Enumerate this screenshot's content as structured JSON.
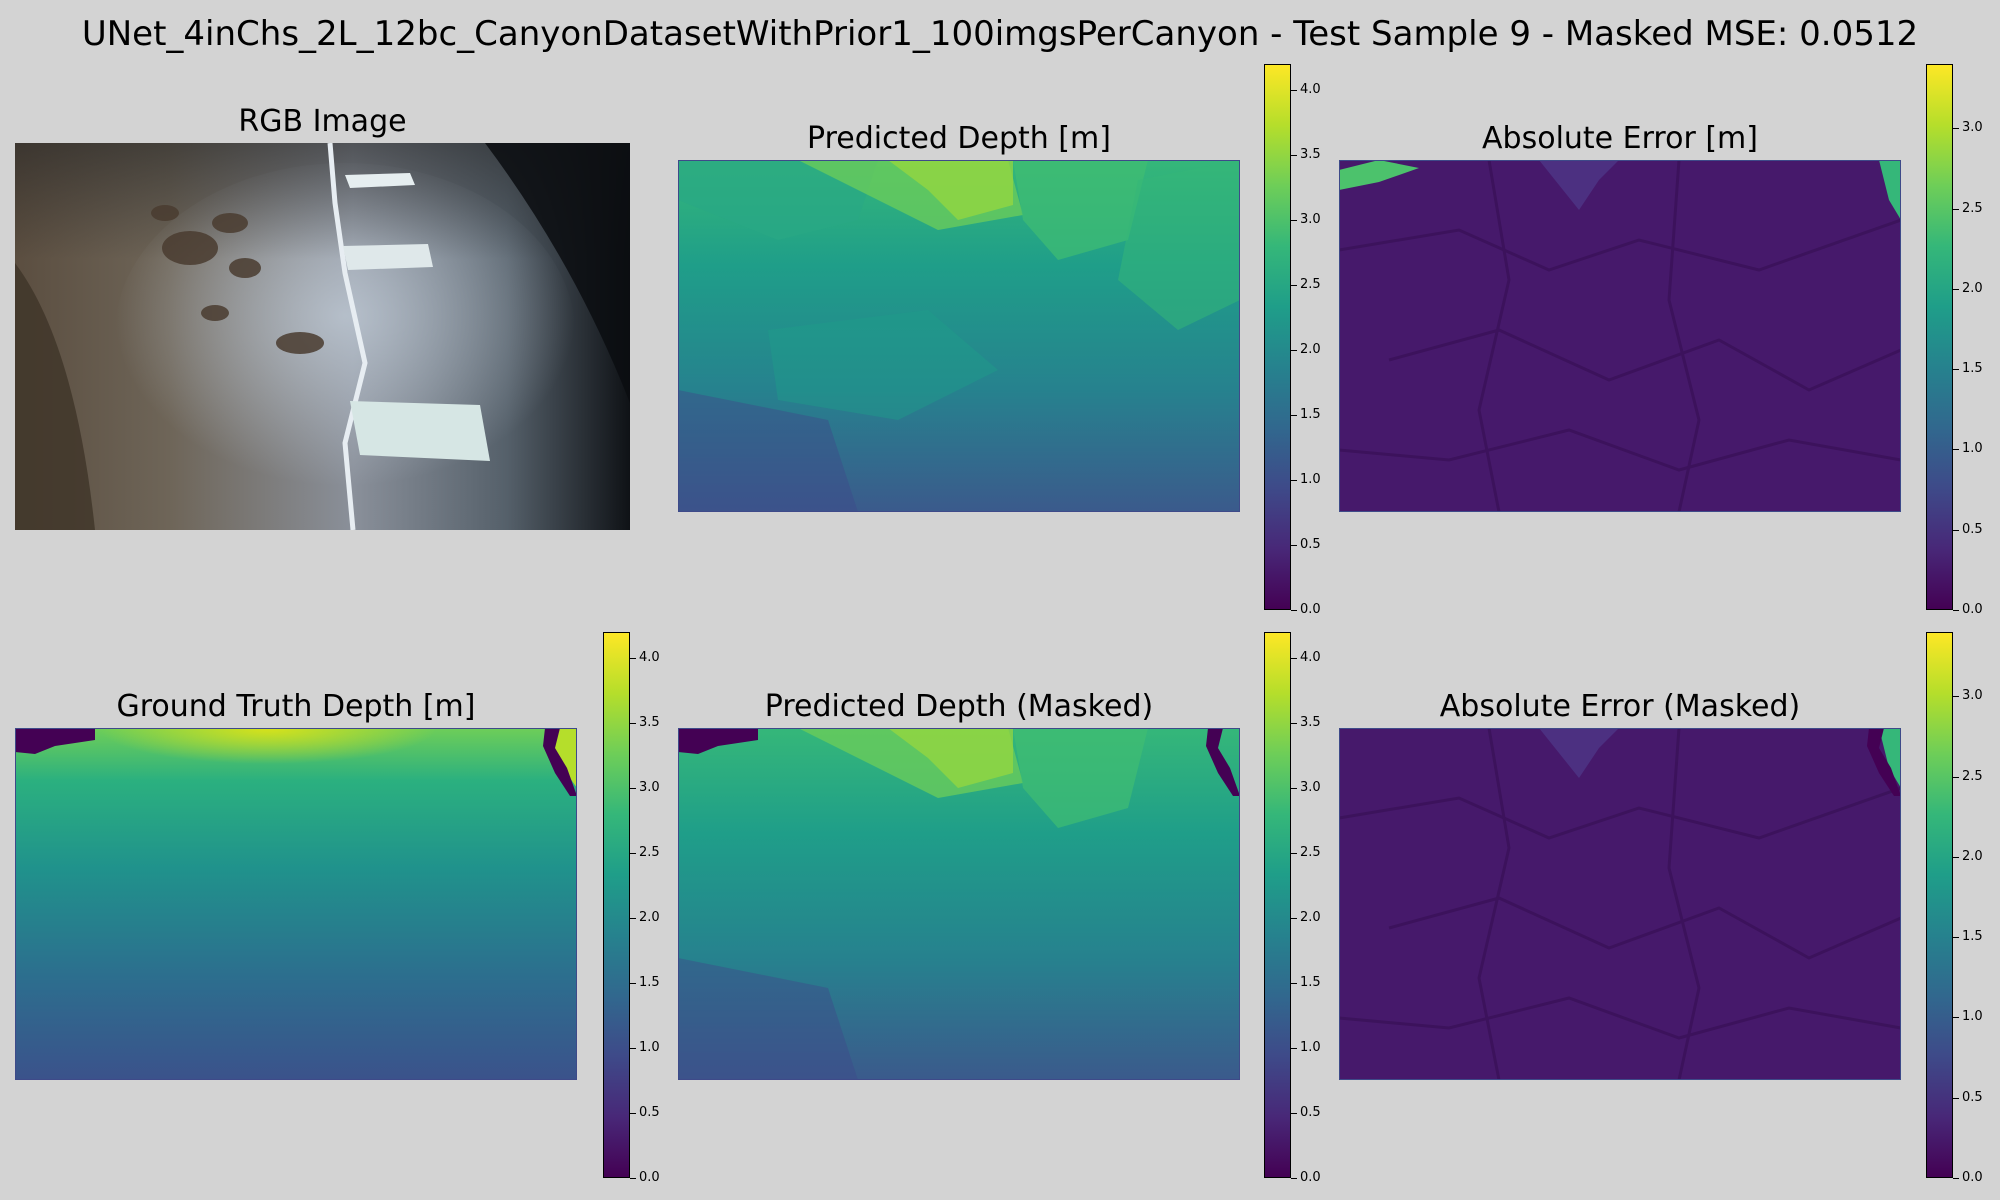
{
  "figure": {
    "suptitle": "UNet_4inChs_2L_12bc_CanyonDatasetWithPrior1_100imgsPerCanyon - Test Sample 9 - Masked MSE: 0.0512"
  },
  "colors": {
    "background": "#d3d3d3",
    "viridis": [
      "#440154",
      "#482878",
      "#3e4a89",
      "#31688e",
      "#26828e",
      "#1f9e89",
      "#35b779",
      "#6ece58",
      "#b5de2b",
      "#fde725"
    ]
  },
  "chart_data": [
    {
      "type": "image",
      "title": "RGB Image",
      "content": "underwater photo of sandy canyon floor with rope line and white markers"
    },
    {
      "type": "heatmap",
      "title": "Predicted Depth [m]",
      "colormap": "viridis",
      "colorbar": {
        "range": [
          0.0,
          4.2
        ],
        "ticks": [
          "0.0",
          "0.5",
          "1.0",
          "1.5",
          "2.0",
          "2.5",
          "3.0",
          "3.5",
          "4.0"
        ]
      },
      "value_range_shown": [
        0.9,
        3.4
      ]
    },
    {
      "type": "heatmap",
      "title": "Absolute Error [m]",
      "colormap": "viridis",
      "colorbar": {
        "range": [
          0.0,
          3.4
        ],
        "ticks": [
          "0.0",
          "0.5",
          "1.0",
          "1.5",
          "2.0",
          "2.5",
          "3.0"
        ]
      },
      "value_range_shown": [
        0.0,
        2.6
      ]
    },
    {
      "type": "heatmap",
      "title": "Ground Truth Depth [m]",
      "colormap": "viridis",
      "colorbar": {
        "range": [
          0.0,
          4.2
        ],
        "ticks": [
          "0.0",
          "0.5",
          "1.0",
          "1.5",
          "2.0",
          "2.5",
          "3.0",
          "3.5",
          "4.0"
        ]
      },
      "value_range_shown": [
        0.0,
        4.2
      ]
    },
    {
      "type": "heatmap",
      "title": "Predicted Depth (Masked)",
      "colormap": "viridis",
      "colorbar": {
        "range": [
          0.0,
          4.2
        ],
        "ticks": [
          "0.0",
          "0.5",
          "1.0",
          "1.5",
          "2.0",
          "2.5",
          "3.0",
          "3.5",
          "4.0"
        ]
      },
      "value_range_shown": [
        0.0,
        3.4
      ]
    },
    {
      "type": "heatmap",
      "title": "Absolute Error (Masked)",
      "colormap": "viridis",
      "colorbar": {
        "range": [
          0.0,
          3.4
        ],
        "ticks": [
          "0.0",
          "0.5",
          "1.0",
          "1.5",
          "2.0",
          "2.5",
          "3.0"
        ]
      },
      "value_range_shown": [
        0.0,
        2.4
      ]
    }
  ]
}
